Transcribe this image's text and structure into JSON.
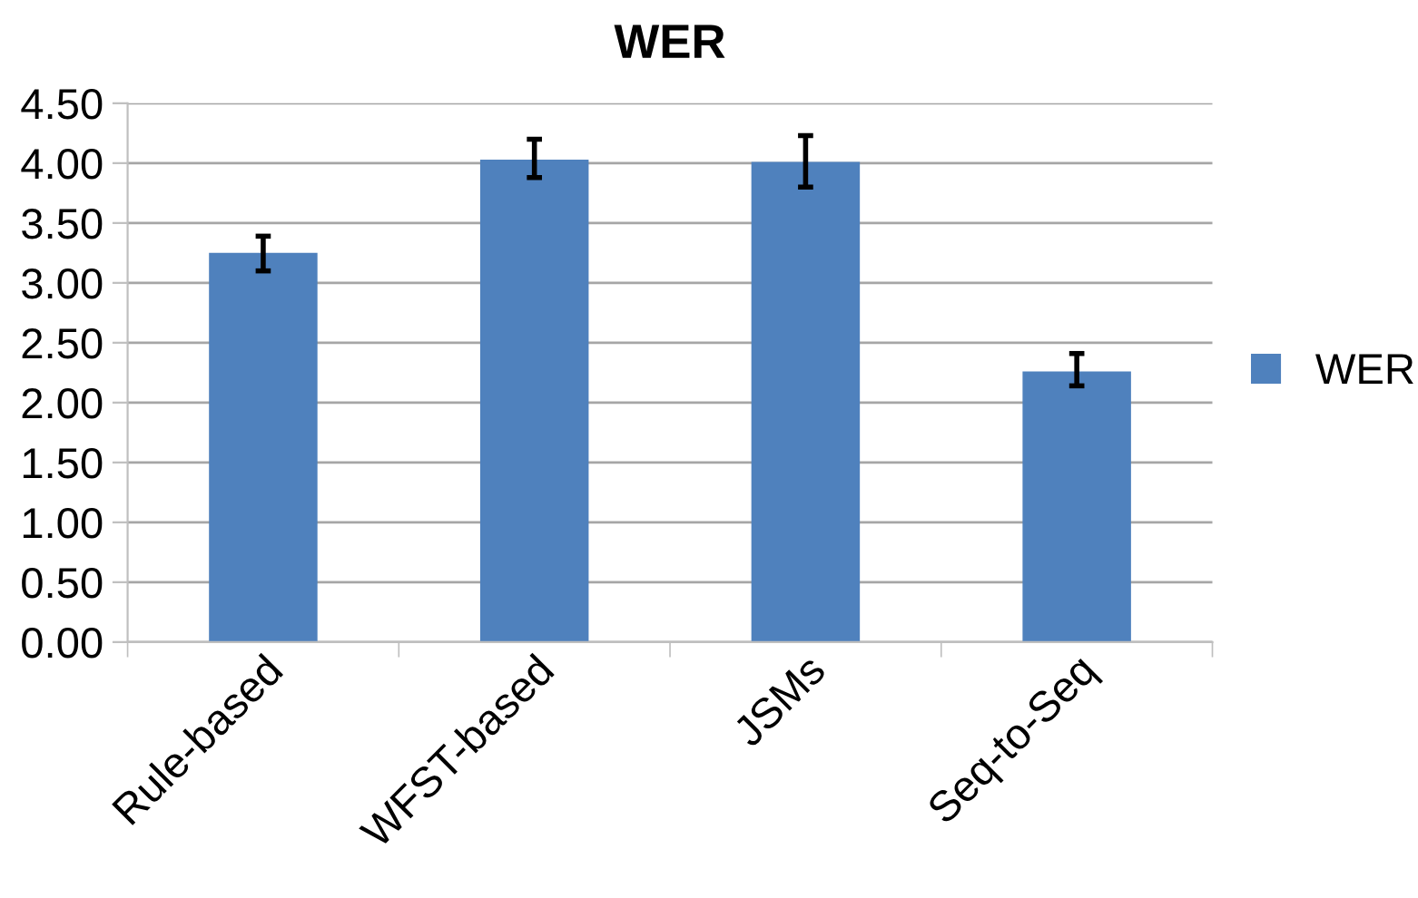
{
  "chart_data": {
    "type": "bar",
    "title": "WER",
    "categories": [
      "Rule-based",
      "WFST-based",
      "JSMs",
      "Seq-to-Seq"
    ],
    "series": [
      {
        "name": "WER",
        "color": "#4f81bd",
        "values": [
          3.25,
          4.03,
          4.01,
          2.26
        ],
        "errors": [
          [
            3.1,
            3.39
          ],
          [
            3.88,
            4.2
          ],
          [
            3.8,
            4.23
          ],
          [
            2.14,
            2.41
          ]
        ]
      }
    ],
    "ylim": [
      0,
      4.5
    ],
    "yticks": [
      {
        "value": 0,
        "label": "0.00"
      },
      {
        "value": 0.5,
        "label": "0.50"
      },
      {
        "value": 1,
        "label": "1.00"
      },
      {
        "value": 1.5,
        "label": "1.50"
      },
      {
        "value": 2,
        "label": "2.00"
      },
      {
        "value": 2.5,
        "label": "2.50"
      },
      {
        "value": 3,
        "label": "3.00"
      },
      {
        "value": 3.5,
        "label": "3.50"
      },
      {
        "value": 4,
        "label": "4.00"
      },
      {
        "value": 4.5,
        "label": "4.50"
      }
    ],
    "grid": "y",
    "legend": "right"
  }
}
